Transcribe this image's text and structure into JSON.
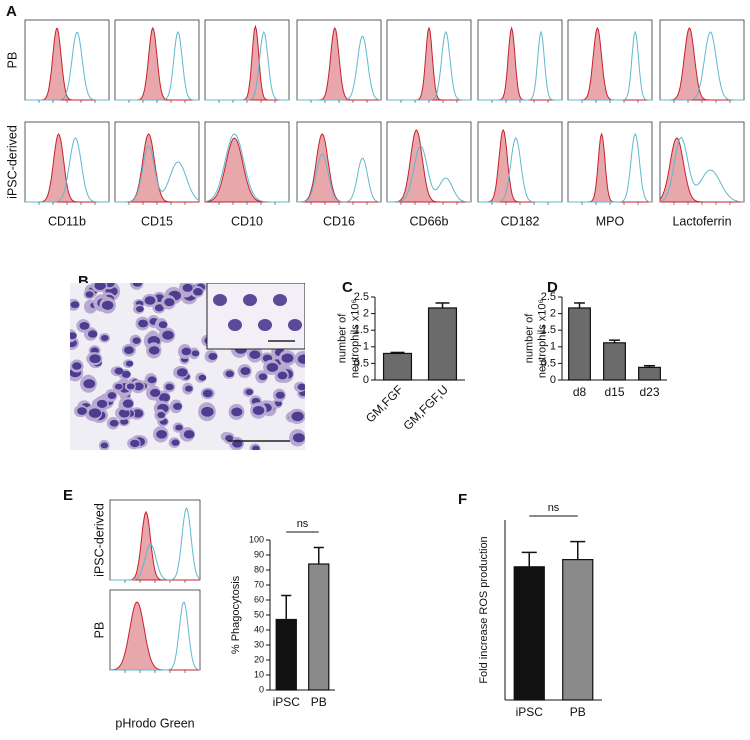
{
  "panel_labels": [
    "A",
    "B",
    "C",
    "D",
    "E",
    "F"
  ],
  "flow": {
    "row_labels": [
      "PB",
      "iPSC-derived"
    ],
    "markers": [
      "CD11b",
      "CD15",
      "CD10",
      "CD16",
      "CD66b",
      "CD182",
      "MPO",
      "Lactoferrin"
    ]
  },
  "phago_flow": {
    "row_labels": [
      "iPSC-derived",
      "PB"
    ],
    "xlabel": "pHrodo Green"
  },
  "chart_data": [
    {
      "type": "bar",
      "ylabel": [
        "number of",
        "neutrophils x10⁶"
      ],
      "categories": [
        "GM,FGF",
        "GM,FGF,U"
      ],
      "values": [
        0.8,
        2.17
      ],
      "errors": [
        0.03,
        0.15
      ],
      "colors": [
        "#6b6b6b",
        "#6b6b6b"
      ],
      "ylim": [
        0,
        2.5
      ],
      "yticks": [
        0,
        0.5,
        1,
        1.5,
        2,
        2.5
      ],
      "rotate_labels": true
    },
    {
      "type": "bar",
      "ylabel": [
        "number of",
        "neutrophils x10⁶"
      ],
      "categories": [
        "d8",
        "d15",
        "d23"
      ],
      "values": [
        2.17,
        1.12,
        0.38
      ],
      "errors": [
        0.15,
        0.08,
        0.05
      ],
      "colors": [
        "#6b6b6b",
        "#6b6b6b",
        "#6b6b6b"
      ],
      "ylim": [
        0,
        2.5
      ],
      "yticks": [
        0,
        0.5,
        1,
        1.5,
        2,
        2.5
      ],
      "rotate_labels": false
    },
    {
      "type": "bar",
      "ylabel": [
        "% Phagocytosis"
      ],
      "categories": [
        "iPSC",
        "PB"
      ],
      "values": [
        47,
        84
      ],
      "errors": [
        16,
        11
      ],
      "colors": [
        "#111111",
        "#8a8a8a"
      ],
      "ylim": [
        0,
        100
      ],
      "yticks": [
        0,
        10,
        20,
        30,
        40,
        50,
        60,
        70,
        80,
        90,
        100
      ],
      "annotation": "ns",
      "rotate_labels": false
    },
    {
      "type": "bar",
      "ylabel": [
        "Fold increase ROS production"
      ],
      "categories": [
        "iPSC",
        "PB"
      ],
      "values": [
        3.7,
        3.9
      ],
      "errors": [
        0.4,
        0.5
      ],
      "colors": [
        "#111111",
        "#8a8a8a"
      ],
      "ylim": [
        0,
        5
      ],
      "annotation": "ns",
      "rotate_labels": false
    }
  ]
}
